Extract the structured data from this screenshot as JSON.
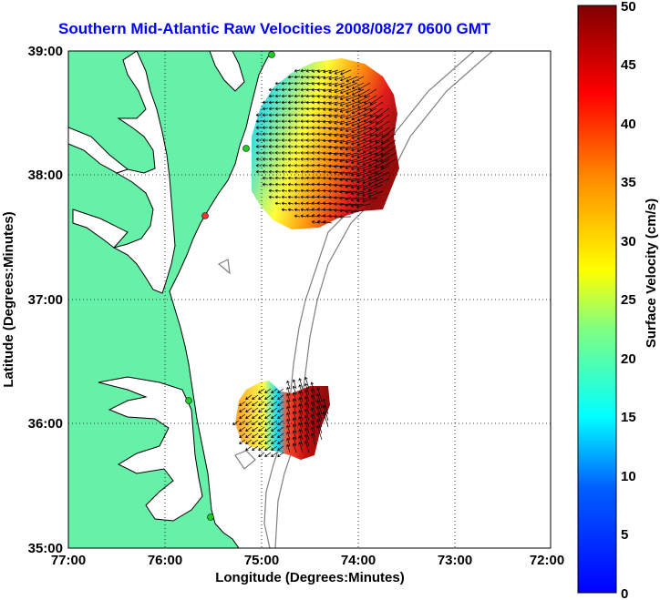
{
  "title": "Southern Mid-Atlantic Raw Velocities 2008/08/27 0600 GMT",
  "x_axis": {
    "label": "Longitude (Degrees:Minutes)",
    "ticks": [
      "77:00",
      "76:00",
      "75:00",
      "74:00",
      "73:00",
      "72:00"
    ]
  },
  "y_axis": {
    "label": "Latitude (Degrees:Minutes)",
    "ticks": [
      "39:00",
      "38:00",
      "37:00",
      "36:00",
      "35:00"
    ]
  },
  "colorbar": {
    "label": "Surface Velocity (cm/s)",
    "ticks": [
      "50",
      "45",
      "40",
      "35",
      "30",
      "25",
      "20",
      "15",
      "10",
      "5",
      "0"
    ],
    "min": 0,
    "max": 50
  },
  "map_data": {
    "lon_range": [
      -77,
      -72
    ],
    "lat_range": [
      35,
      39
    ],
    "land_color": "#66f0a8",
    "coast_color": "#000000",
    "isobath_color": "#808080",
    "grid": "dotted",
    "stations_color": "#22cc22",
    "station_highlight_color": "#ff3030"
  }
}
